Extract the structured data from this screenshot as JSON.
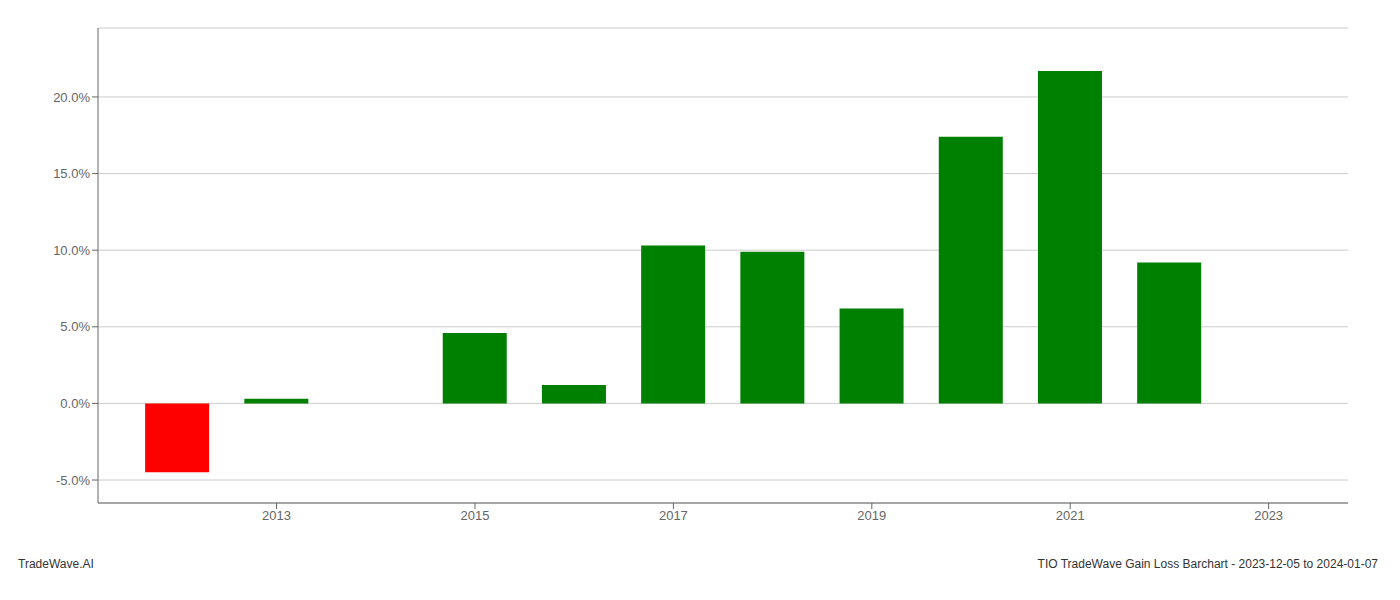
{
  "chart_data": {
    "type": "bar",
    "x": [
      2012,
      2013,
      2015,
      2016,
      2017,
      2018,
      2019,
      2020,
      2021,
      2022
    ],
    "values": [
      -4.5,
      0.3,
      4.6,
      1.2,
      10.3,
      9.9,
      6.2,
      17.4,
      21.7,
      9.2
    ],
    "colors": [
      "#ff0000",
      "#008000",
      "#008000",
      "#008000",
      "#008000",
      "#008000",
      "#008000",
      "#008000",
      "#008000",
      "#008000"
    ],
    "xlim": [
      2011.2,
      2023.8
    ],
    "xticks": [
      2013,
      2015,
      2017,
      2019,
      2021,
      2023
    ],
    "ylim": [
      -6.5,
      24.5
    ],
    "yticks": [
      {
        "value": -5.0,
        "label": "-5.0%"
      },
      {
        "value": 0.0,
        "label": "0.0%"
      },
      {
        "value": 5.0,
        "label": "5.0%"
      },
      {
        "value": 10.0,
        "label": "10.0%"
      },
      {
        "value": 15.0,
        "label": "15.0%"
      },
      {
        "value": 20.0,
        "label": "20.0%"
      }
    ],
    "grid": true,
    "annotations": [
      "TradeWave.AI",
      "TIO TradeWave Gain Loss Barchart - 2023-12-05 to 2024-01-07"
    ]
  }
}
